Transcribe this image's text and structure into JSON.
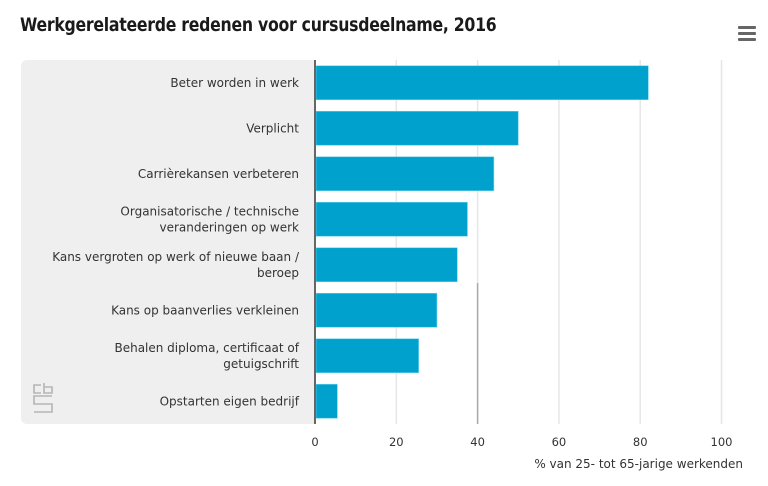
{
  "header": {
    "title": "Werkgerelateerde redenen voor cursusdeelname, 2016",
    "menu_icon": "hamburger-menu-icon"
  },
  "logo": {
    "name": "cbs-logo",
    "text": "cbs"
  },
  "colors": {
    "bar": "#00a1cd",
    "panel": "#efefef",
    "gridline": "#e6e6e6",
    "axis": "#666666"
  },
  "chart_data": {
    "type": "bar",
    "orientation": "horizontal",
    "title": "Werkgerelateerde redenen voor cursusdeelname, 2016",
    "categories": [
      [
        "Beter worden in werk"
      ],
      [
        "Verplicht"
      ],
      [
        "Carrièrekansen verbeteren"
      ],
      [
        "Organisatorische / technische",
        "veranderingen op werk"
      ],
      [
        "Kans vergroten op werk of nieuwe baan /",
        "beroep"
      ],
      [
        "Kans op baanverlies verkleinen"
      ],
      [
        "Behalen diploma, certificaat of",
        "getuigschrift"
      ],
      [
        "Opstarten eigen bedrijf"
      ]
    ],
    "values": [
      82,
      50,
      44,
      37.5,
      35,
      30,
      25.5,
      5.5
    ],
    "xlabel": "% van 25- tot 65-jarige werkenden",
    "ylabel": "",
    "xlim": [
      0,
      100
    ],
    "xticks": [
      "0",
      "20",
      "40",
      "60",
      "80",
      "100"
    ],
    "grid": true,
    "legend": "none"
  }
}
